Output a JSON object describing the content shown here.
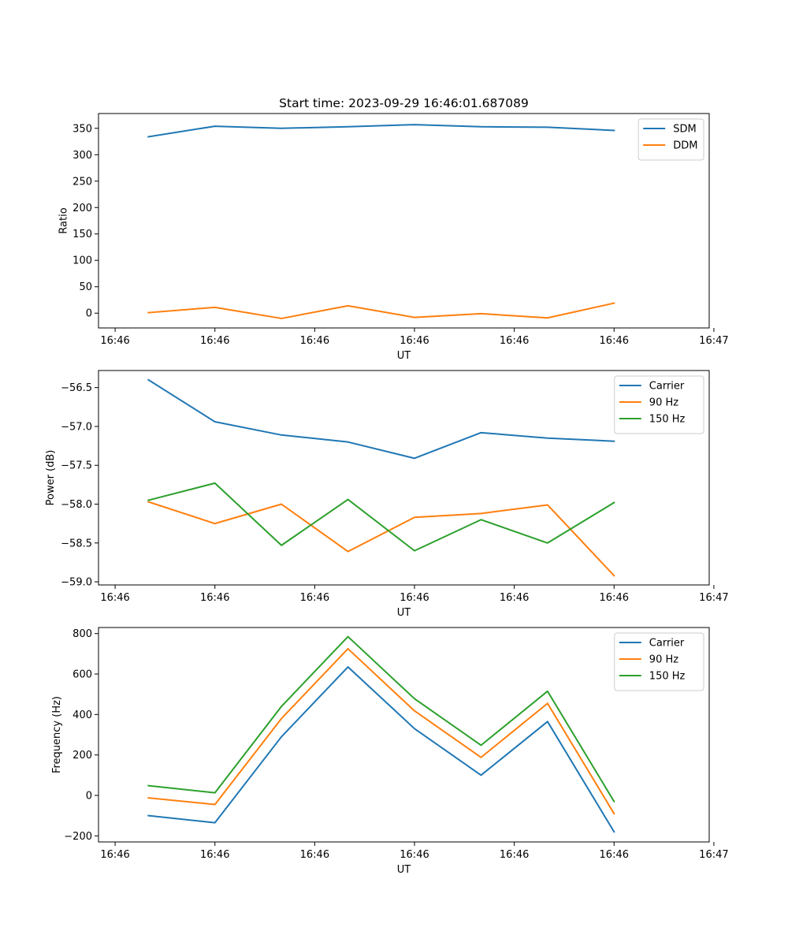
{
  "figure": {
    "title": "Start time: 2023-09-29 16:46:01.687089"
  },
  "chart_data": [
    {
      "type": "line",
      "title": "Start time: 2023-09-29 16:46:01.687089",
      "xlabel": "UT",
      "ylabel": "Ratio",
      "x": [
        0,
        1,
        2,
        3,
        4,
        5,
        6,
        7
      ],
      "xlim": [
        -0.75,
        8.43
      ],
      "x_ticks": [
        -0.5,
        1.0,
        2.5,
        4.0,
        5.5,
        7.0,
        8.5
      ],
      "x_tick_labels": [
        "16:46",
        "16:46",
        "16:46",
        "16:46",
        "16:46",
        "16:46",
        "16:47"
      ],
      "ylim": [
        -28,
        378
      ],
      "y_ticks": [
        0,
        50,
        100,
        150,
        200,
        250,
        300,
        350
      ],
      "y_tick_labels": [
        "0",
        "50",
        "100",
        "150",
        "200",
        "250",
        "300",
        "350"
      ],
      "legend_position": "top-right",
      "series": [
        {
          "name": "SDM",
          "color": "#1f77b4",
          "values": [
            334,
            354,
            350,
            353,
            357,
            353,
            352,
            346
          ]
        },
        {
          "name": "DDM",
          "color": "#ff7f0e",
          "values": [
            1,
            11,
            -10,
            14,
            -8,
            -1,
            -9,
            19
          ]
        }
      ]
    },
    {
      "type": "line",
      "title": "",
      "xlabel": "UT",
      "ylabel": "Power (dB)",
      "x": [
        0,
        1,
        2,
        3,
        4,
        5,
        6,
        7
      ],
      "xlim": [
        -0.75,
        8.43
      ],
      "x_ticks": [
        -0.5,
        1.0,
        2.5,
        4.0,
        5.5,
        7.0,
        8.5
      ],
      "x_tick_labels": [
        "16:46",
        "16:46",
        "16:46",
        "16:46",
        "16:46",
        "16:46",
        "16:47"
      ],
      "ylim": [
        -59.04,
        -56.28
      ],
      "y_ticks": [
        -59.0,
        -58.5,
        -58.0,
        -57.5,
        -57.0,
        -56.5
      ],
      "y_tick_labels": [
        "−59.0",
        "−58.5",
        "−58.0",
        "−57.5",
        "−57.0",
        "−56.5"
      ],
      "legend_position": "top-right",
      "series": [
        {
          "name": "Carrier",
          "color": "#1f77b4",
          "values": [
            -56.4,
            -56.94,
            -57.11,
            -57.2,
            -57.41,
            -57.08,
            -57.15,
            -57.19
          ]
        },
        {
          "name": "90 Hz",
          "color": "#ff7f0e",
          "values": [
            -57.97,
            -58.25,
            -58.0,
            -58.61,
            -58.17,
            -58.12,
            -58.01,
            -58.92
          ]
        },
        {
          "name": "150 Hz",
          "color": "#2ca02c",
          "values": [
            -57.95,
            -57.73,
            -58.53,
            -57.94,
            -58.6,
            -58.2,
            -58.5,
            -57.98
          ]
        }
      ]
    },
    {
      "type": "line",
      "title": "",
      "xlabel": "UT",
      "ylabel": "Frequency (Hz)",
      "x": [
        0,
        1,
        2,
        3,
        4,
        5,
        6,
        7
      ],
      "xlim": [
        -0.75,
        8.43
      ],
      "x_ticks": [
        -0.5,
        1.0,
        2.5,
        4.0,
        5.5,
        7.0,
        8.5
      ],
      "x_tick_labels": [
        "16:46",
        "16:46",
        "16:46",
        "16:46",
        "16:46",
        "16:46",
        "16:47"
      ],
      "ylim": [
        -230,
        830
      ],
      "y_ticks": [
        -200,
        0,
        200,
        400,
        600,
        800
      ],
      "y_tick_labels": [
        "−200",
        "0",
        "200",
        "400",
        "600",
        "800"
      ],
      "legend_position": "top-right",
      "series": [
        {
          "name": "Carrier",
          "color": "#1f77b4",
          "values": [
            -100,
            -135,
            290,
            635,
            330,
            100,
            365,
            -180
          ]
        },
        {
          "name": "90 Hz",
          "color": "#ff7f0e",
          "values": [
            -12,
            -45,
            380,
            725,
            418,
            188,
            455,
            -90
          ]
        },
        {
          "name": "150 Hz",
          "color": "#2ca02c",
          "values": [
            48,
            13,
            440,
            785,
            478,
            248,
            515,
            -30
          ]
        }
      ]
    }
  ]
}
